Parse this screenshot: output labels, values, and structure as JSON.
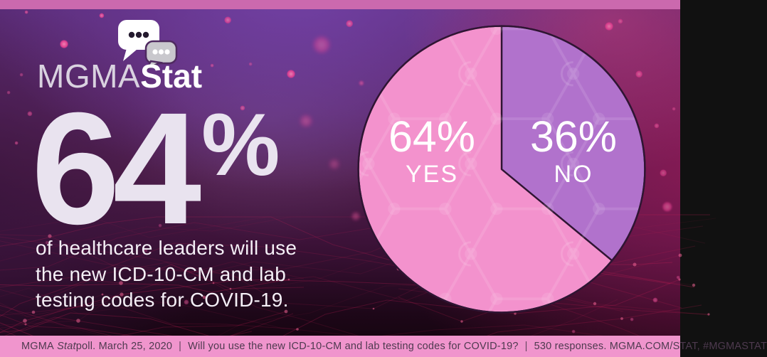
{
  "brand": {
    "wordmark_light": "MGMA",
    "wordmark_bold": "Stat",
    "icon": "speech-bubbles-icon"
  },
  "stat": {
    "value": "64",
    "percent_sign": "%",
    "headline_lines": [
      "of healthcare leaders will use",
      "the new ICD-10-CM and lab",
      "testing codes for COVID-19."
    ]
  },
  "chart_data": {
    "type": "pie",
    "title": "Will you use the new ICD-10-CM and lab testing codes for COVID-19?",
    "responses": 530,
    "start_angle_deg": 0,
    "direction": "clockwise",
    "slices": [
      {
        "label": "NO",
        "value": 36,
        "display": "36%",
        "color": "#b172cc"
      },
      {
        "label": "YES",
        "value": 64,
        "display": "64%",
        "color": "#f392cd"
      }
    ]
  },
  "footer": {
    "org": "MGMA",
    "poll_italic": "Stat",
    "poll_suffix": " poll. March 25, 2020",
    "sep": "|",
    "question": "Will you use the new ICD-10-CM and lab testing codes for COVID-19?",
    "tail": "530 responses. MGMA.COM/STAT, #MGMASTAT"
  },
  "colors": {
    "top_bar": "#cb69ae",
    "footer_bar": "#f095cd",
    "pie_outline": "#2f1533",
    "big_stat_text": "#e9e3ef"
  }
}
